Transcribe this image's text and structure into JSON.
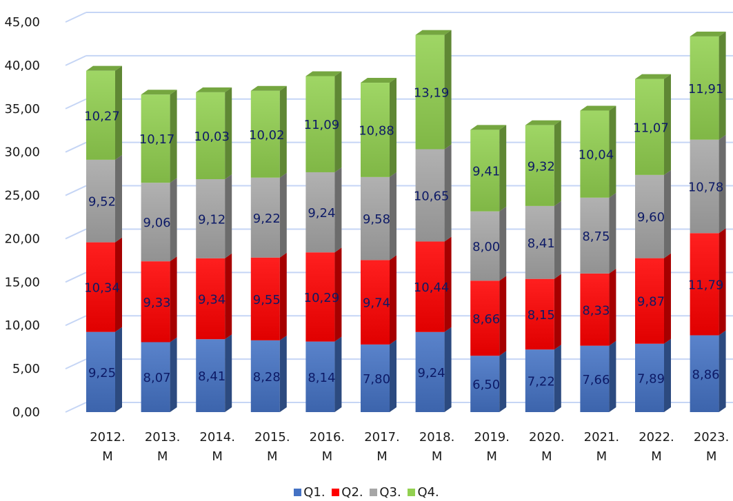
{
  "colors": {
    "Q1": "#4472c4",
    "Q2": "#ff0000",
    "Q3": "#a6a6a6",
    "Q4": "#92d050",
    "gridline": "#c5d5f5",
    "axis": "#b4c7e7",
    "data_label": "#0d1a66"
  },
  "chart_data": {
    "type": "bar",
    "stacked": true,
    "three_d": true,
    "categories": [
      [
        "2012.",
        "M"
      ],
      [
        "2013.",
        "M"
      ],
      [
        "2014.",
        "M"
      ],
      [
        "2015.",
        "M"
      ],
      [
        "2016.",
        "M"
      ],
      [
        "2017.",
        "M"
      ],
      [
        "2018.",
        "M"
      ],
      [
        "2019.",
        "M"
      ],
      [
        "2020.",
        "M"
      ],
      [
        "2021.",
        "M"
      ],
      [
        "2022.",
        "M"
      ],
      [
        "2023.",
        "M"
      ]
    ],
    "series": [
      {
        "name": "Q1.",
        "values": [
          9.25,
          8.07,
          8.41,
          8.28,
          8.14,
          7.8,
          9.24,
          6.5,
          7.22,
          7.66,
          7.89,
          8.86
        ],
        "labels": [
          "9,25",
          "8,07",
          "8,41",
          "8,28",
          "8,14",
          "7,80",
          "9,24",
          "6,50",
          "7,22",
          "7,66",
          "7,89",
          "8,86"
        ]
      },
      {
        "name": "Q2.",
        "values": [
          10.34,
          9.33,
          9.34,
          9.55,
          10.29,
          9.74,
          10.44,
          8.66,
          8.15,
          8.33,
          9.87,
          11.79
        ],
        "labels": [
          "10,34",
          "9,33",
          "9,34",
          "9,55",
          "10,29",
          "9,74",
          "10,44",
          "8,66",
          "8,15",
          "8,33",
          "9,87",
          "11,79"
        ]
      },
      {
        "name": "Q3.",
        "values": [
          9.52,
          9.06,
          9.12,
          9.22,
          9.24,
          9.58,
          10.65,
          8.0,
          8.41,
          8.75,
          9.6,
          10.78
        ],
        "labels": [
          "9,52",
          "9,06",
          "9,12",
          "9,22",
          "9,24",
          "9,58",
          "10,65",
          "8,00",
          "8,41",
          "8,75",
          "9,60",
          "10,78"
        ]
      },
      {
        "name": "Q4.",
        "values": [
          10.27,
          10.17,
          10.03,
          10.02,
          11.09,
          10.88,
          13.19,
          9.41,
          9.32,
          10.04,
          11.07,
          11.91
        ],
        "labels": [
          "10,27",
          "10,17",
          "10,03",
          "10,02",
          "11,09",
          "10,88",
          "13,19",
          "9,41",
          "9,32",
          "10,04",
          "11,07",
          "11,91"
        ]
      }
    ],
    "y_ticks": [
      "0,00",
      "5,00",
      "10,00",
      "15,00",
      "20,00",
      "25,00",
      "30,00",
      "35,00",
      "40,00",
      "45,00"
    ],
    "ylim": [
      0,
      45
    ],
    "grid": true,
    "legend_position": "bottom-center"
  }
}
